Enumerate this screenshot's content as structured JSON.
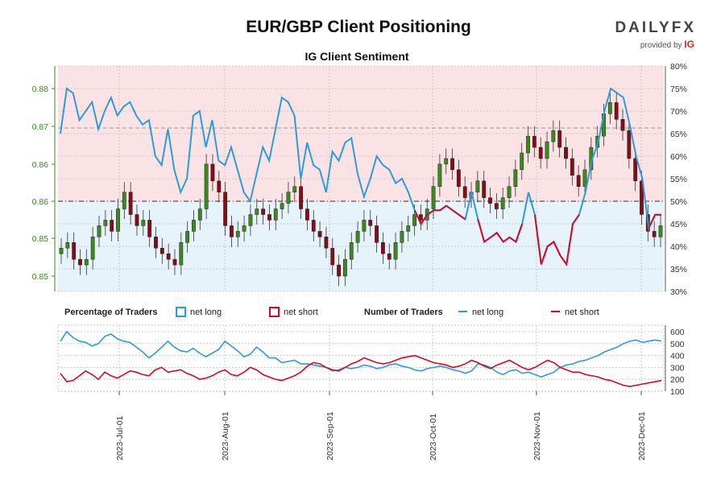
{
  "title": "EUR/GBP Client Positioning",
  "subtitle": "IG Client Sentiment",
  "logo": {
    "wordmark": "DAILYFX",
    "provided_by": "provided by",
    "brand": "IG"
  },
  "colors": {
    "long": "#2f9bd7",
    "short": "#d10a2b",
    "price_axis": "#3a8a1d",
    "long_zone": "#e6f3fb",
    "short_zone": "#fbe3e5",
    "candle_up": "#2a2a2a"
  },
  "legend": {
    "pct_heading": "Percentage of Traders",
    "pct_long": "net long",
    "pct_short": "net short",
    "num_heading": "Number of Traders",
    "num_long": "net long",
    "num_short": "net short"
  },
  "chart_data": {
    "type": "line",
    "x_dates": [
      "2023-Jul-01",
      "2023-Aug-01",
      "2023-Sep-01",
      "2023-Oct-01",
      "2023-Nov-01",
      "2023-Dec-01"
    ],
    "y_left_ticks": [
      "0.85",
      "0.85",
      "0.86",
      "0.86",
      "0.87",
      "0.88"
    ],
    "y_right_ticks": [
      "30%",
      "35%",
      "40%",
      "45%",
      "50%",
      "55%",
      "60%",
      "65%",
      "70%",
      "75%",
      "80%"
    ],
    "y_bottom_ticks": [
      "100",
      "200",
      "300",
      "400",
      "500",
      "600"
    ],
    "grid": true,
    "price_ohlc_close": [
      0.851,
      0.852,
      0.849,
      0.848,
      0.849,
      0.853,
      0.855,
      0.856,
      0.854,
      0.858,
      0.861,
      0.857,
      0.855,
      0.856,
      0.853,
      0.851,
      0.85,
      0.849,
      0.848,
      0.852,
      0.854,
      0.856,
      0.858,
      0.866,
      0.863,
      0.861,
      0.855,
      0.853,
      0.854,
      0.855,
      0.857,
      0.858,
      0.857,
      0.856,
      0.858,
      0.859,
      0.861,
      0.862,
      0.858,
      0.856,
      0.854,
      0.853,
      0.851,
      0.848,
      0.846,
      0.849,
      0.852,
      0.854,
      0.856,
      0.855,
      0.852,
      0.85,
      0.849,
      0.852,
      0.854,
      0.855,
      0.857,
      0.856,
      0.858,
      0.862,
      0.866,
      0.867,
      0.865,
      0.862,
      0.86,
      0.861,
      0.863,
      0.86,
      0.859,
      0.858,
      0.86,
      0.862,
      0.865,
      0.868,
      0.871,
      0.869,
      0.867,
      0.87,
      0.872,
      0.869,
      0.867,
      0.864,
      0.862,
      0.865,
      0.869,
      0.871,
      0.875,
      0.877,
      0.874,
      0.872,
      0.867,
      0.863,
      0.857,
      0.854,
      0.853,
      0.855
    ],
    "series": [
      {
        "name": "net long",
        "percent": [
          65,
          75,
          74,
          68,
          70,
          72,
          66,
          70,
          73,
          69,
          71,
          72,
          69,
          67,
          68,
          60,
          58,
          66,
          57,
          52,
          55,
          69,
          70,
          62,
          68,
          59,
          58,
          62,
          57,
          52,
          50,
          56,
          62,
          59,
          66,
          73,
          72,
          69,
          55,
          63,
          58,
          57,
          52,
          61,
          59,
          63,
          64,
          56,
          51,
          55,
          60,
          58,
          57,
          54,
          55,
          52,
          48,
          45,
          47,
          48,
          48,
          49,
          48,
          47,
          46,
          52,
          46,
          41,
          42,
          43,
          41,
          42,
          41,
          45,
          52,
          47,
          36,
          40,
          41,
          38,
          36,
          45,
          47,
          52,
          59,
          63,
          70,
          75,
          74,
          73,
          67,
          60,
          55,
          44,
          47,
          47
        ],
        "count": [
          520,
          600,
          550,
          520,
          510,
          480,
          500,
          560,
          580,
          540,
          520,
          510,
          470,
          430,
          380,
          420,
          470,
          520,
          470,
          440,
          430,
          460,
          420,
          390,
          420,
          450,
          520,
          480,
          440,
          390,
          410,
          470,
          430,
          380,
          380,
          340,
          350,
          360,
          330,
          330,
          320,
          310,
          300,
          270,
          280,
          300,
          290,
          300,
          320,
          310,
          290,
          300,
          320,
          330,
          310,
          300,
          280,
          270,
          290,
          300,
          310,
          300,
          280,
          270,
          250,
          270,
          330,
          320,
          300,
          260,
          240,
          270,
          280,
          250,
          260,
          240,
          220,
          240,
          260,
          300,
          320,
          330,
          350,
          360,
          380,
          400,
          430,
          450,
          470,
          500,
          520,
          530,
          510,
          520,
          530,
          520
        ]
      },
      {
        "name": "net short",
        "percent": [
          35,
          25,
          26,
          32,
          30,
          28,
          34,
          30,
          27,
          31,
          29,
          28,
          31,
          33,
          32,
          40,
          42,
          34,
          43,
          48,
          45,
          31,
          30,
          38,
          32,
          41,
          42,
          38,
          43,
          48,
          50,
          44,
          38,
          41,
          34,
          27,
          28,
          31,
          45,
          37,
          42,
          43,
          48,
          39,
          41,
          37,
          36,
          44,
          49,
          45,
          40,
          42,
          43,
          46,
          45,
          48,
          52,
          55,
          53,
          52,
          52,
          51,
          52,
          53,
          54,
          48,
          54,
          59,
          58,
          57,
          59,
          58,
          59,
          55,
          48,
          53,
          64,
          60,
          59,
          62,
          64,
          55,
          53,
          48,
          41,
          37,
          30,
          25,
          26,
          27,
          33,
          40,
          45,
          56,
          53,
          53
        ],
        "count": [
          250,
          180,
          190,
          230,
          270,
          240,
          200,
          260,
          230,
          210,
          240,
          270,
          260,
          240,
          230,
          280,
          300,
          260,
          270,
          280,
          250,
          230,
          200,
          210,
          230,
          260,
          280,
          240,
          230,
          260,
          300,
          280,
          240,
          220,
          200,
          190,
          210,
          230,
          260,
          310,
          340,
          330,
          300,
          280,
          270,
          300,
          330,
          350,
          380,
          360,
          340,
          330,
          340,
          360,
          380,
          390,
          400,
          380,
          360,
          340,
          330,
          320,
          300,
          310,
          330,
          360,
          340,
          310,
          290,
          320,
          340,
          360,
          330,
          300,
          280,
          300,
          330,
          360,
          340,
          300,
          280,
          260,
          260,
          240,
          230,
          220,
          200,
          190,
          170,
          150,
          140,
          150,
          160,
          170,
          180,
          190
        ]
      }
    ]
  }
}
